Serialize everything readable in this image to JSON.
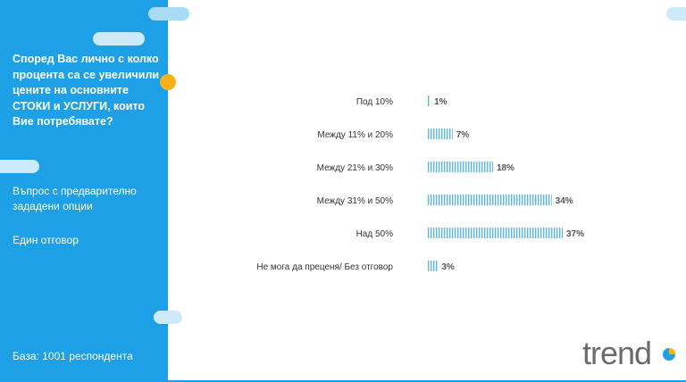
{
  "sidebar": {
    "question": "Според Вас лично с колко процента са се увеличили цените на основните СТОКИ и УСЛУГИ, които Вие потребявате?",
    "type_text": "Въпрос с предварително зададени опции",
    "answer_mode": "Един отговор",
    "base": "База:  1001 респондента"
  },
  "logo": {
    "text": "trend"
  },
  "colors": {
    "sidebar": "#1ea0e6",
    "accent_dot": "#f7b21b",
    "bar_hatch": "#5bb8e8"
  },
  "chart_data": {
    "type": "bar",
    "orientation": "horizontal",
    "categories": [
      "Под 10%",
      "Между 11% и 20%",
      "Между 21% и 30%",
      "Между 31% и 50%",
      "Над 50%",
      "Не мога да преценя/ Без отговор"
    ],
    "values": [
      1,
      7,
      18,
      34,
      37,
      3
    ],
    "value_labels": [
      "1%",
      "7%",
      "18%",
      "34%",
      "37%",
      "3%"
    ],
    "unit": "%",
    "xlim": [
      0,
      37
    ],
    "grid": false,
    "legend": "none"
  }
}
